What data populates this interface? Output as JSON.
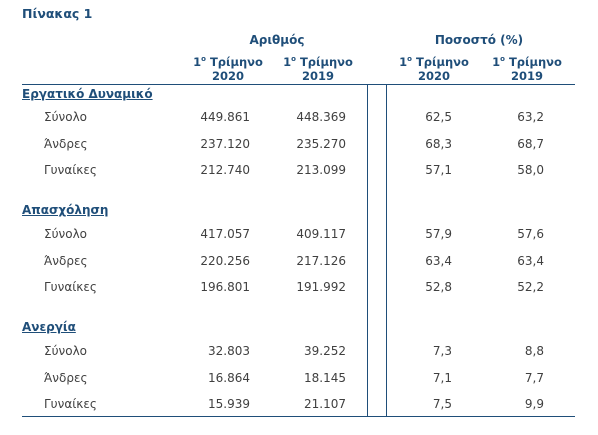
{
  "title": "Πίνακας 1",
  "headers": {
    "group_count": "Αριθμός",
    "group_pct": "Ποσοστό (%)",
    "q_num": "1",
    "q_sup": "ο",
    "q_word": " Τρίμηνο",
    "y2020": "2020",
    "y2019": "2019"
  },
  "sections": [
    {
      "name": "Εργατικό Δυναμικό",
      "rows": [
        {
          "label": "Σύνολο",
          "n2020": "449.861",
          "n2019": "448.369",
          "p2020": "62,5",
          "p2019": "63,2"
        },
        {
          "label": "Άνδρες",
          "n2020": "237.120",
          "n2019": "235.270",
          "p2020": "68,3",
          "p2019": "68,7"
        },
        {
          "label": "Γυναίκες",
          "n2020": "212.740",
          "n2019": "213.099",
          "p2020": "57,1",
          "p2019": "58,0"
        }
      ]
    },
    {
      "name": "Απασχόληση",
      "rows": [
        {
          "label": "Σύνολο",
          "n2020": "417.057",
          "n2019": "409.117",
          "p2020": "57,9",
          "p2019": "57,6"
        },
        {
          "label": "Άνδρες",
          "n2020": "220.256",
          "n2019": "217.126",
          "p2020": "63,4",
          "p2019": "63,4"
        },
        {
          "label": "Γυναίκες",
          "n2020": "196.801",
          "n2019": "191.992",
          "p2020": "52,8",
          "p2019": "52,2"
        }
      ]
    },
    {
      "name": "Ανεργία",
      "rows": [
        {
          "label": "Σύνολο",
          "n2020": "32.803",
          "n2019": "39.252",
          "p2020": "7,3",
          "p2019": "8,8"
        },
        {
          "label": "Άνδρες",
          "n2020": "16.864",
          "n2019": "18.145",
          "p2020": "7,1",
          "p2019": "7,7"
        },
        {
          "label": "Γυναίκες",
          "n2020": "15.939",
          "n2019": "21.107",
          "p2020": "7,5",
          "p2019": "9,9"
        }
      ]
    }
  ]
}
